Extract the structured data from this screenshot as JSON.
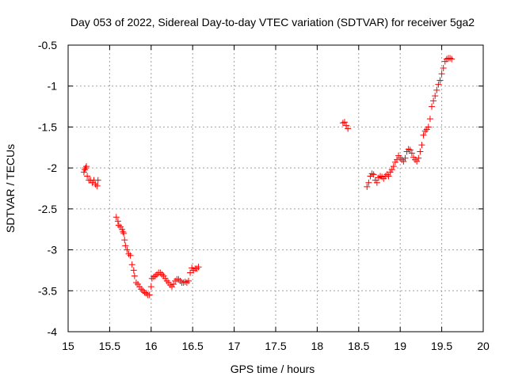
{
  "chart_data": {
    "type": "scatter",
    "title": "Day 053 of 2022, Sidereal Day-to-day VTEC variation (SDTVAR) for receiver 5ga2",
    "xlabel": "GPS time / hours",
    "ylabel": "SDTVAR / TECUs",
    "xlim": [
      15,
      20
    ],
    "ylim": [
      -4,
      -0.5
    ],
    "xticks": [
      15,
      15.5,
      16,
      16.5,
      17,
      17.5,
      18,
      18.5,
      19,
      19.5,
      20
    ],
    "xtick_labels": [
      "15",
      "15.5",
      "16",
      "16.5",
      "17",
      "17.5",
      "18",
      "18.5",
      "19",
      "19.5",
      "20"
    ],
    "yticks": [
      -4,
      -3.5,
      -3,
      -2.5,
      -2,
      -1.5,
      -1,
      -0.5
    ],
    "ytick_labels": [
      "-4",
      "-3.5",
      "-3",
      "-2.5",
      "-2",
      "-1.5",
      "-1",
      "-0.5"
    ],
    "grid": true,
    "marker": "plus",
    "color": "#ff0000",
    "series": [
      {
        "name": "SDTVAR",
        "points": [
          [
            15.19,
            -2.05
          ],
          [
            15.2,
            -2.02
          ],
          [
            15.21,
            -2.0
          ],
          [
            15.22,
            -1.98
          ],
          [
            15.23,
            -2.1
          ],
          [
            15.25,
            -2.15
          ],
          [
            15.27,
            -2.15
          ],
          [
            15.29,
            -2.18
          ],
          [
            15.31,
            -2.15
          ],
          [
            15.33,
            -2.2
          ],
          [
            15.35,
            -2.22
          ],
          [
            15.36,
            -2.15
          ],
          [
            15.58,
            -2.6
          ],
          [
            15.6,
            -2.65
          ],
          [
            15.61,
            -2.7
          ],
          [
            15.63,
            -2.72
          ],
          [
            15.65,
            -2.75
          ],
          [
            15.66,
            -2.78
          ],
          [
            15.67,
            -2.8
          ],
          [
            15.68,
            -2.88
          ],
          [
            15.69,
            -2.95
          ],
          [
            15.71,
            -3.0
          ],
          [
            15.73,
            -3.05
          ],
          [
            15.75,
            -3.07
          ],
          [
            15.77,
            -3.18
          ],
          [
            15.79,
            -3.25
          ],
          [
            15.8,
            -3.32
          ],
          [
            15.82,
            -3.4
          ],
          [
            15.84,
            -3.42
          ],
          [
            15.86,
            -3.45
          ],
          [
            15.88,
            -3.48
          ],
          [
            15.9,
            -3.5
          ],
          [
            15.92,
            -3.52
          ],
          [
            15.94,
            -3.53
          ],
          [
            15.96,
            -3.55
          ],
          [
            15.98,
            -3.55
          ],
          [
            16.0,
            -3.45
          ],
          [
            16.01,
            -3.35
          ],
          [
            16.03,
            -3.33
          ],
          [
            16.05,
            -3.32
          ],
          [
            16.07,
            -3.3
          ],
          [
            16.09,
            -3.28
          ],
          [
            16.11,
            -3.28
          ],
          [
            16.13,
            -3.3
          ],
          [
            16.15,
            -3.32
          ],
          [
            16.17,
            -3.35
          ],
          [
            16.19,
            -3.38
          ],
          [
            16.21,
            -3.4
          ],
          [
            16.23,
            -3.43
          ],
          [
            16.25,
            -3.45
          ],
          [
            16.27,
            -3.42
          ],
          [
            16.29,
            -3.38
          ],
          [
            16.31,
            -3.36
          ],
          [
            16.33,
            -3.36
          ],
          [
            16.35,
            -3.38
          ],
          [
            16.37,
            -3.4
          ],
          [
            16.39,
            -3.4
          ],
          [
            16.41,
            -3.39
          ],
          [
            16.43,
            -3.4
          ],
          [
            16.45,
            -3.38
          ],
          [
            16.47,
            -3.28
          ],
          [
            16.49,
            -3.22
          ],
          [
            16.51,
            -3.25
          ],
          [
            16.53,
            -3.23
          ],
          [
            16.55,
            -3.23
          ],
          [
            16.57,
            -3.21
          ],
          [
            18.31,
            -1.45
          ],
          [
            18.33,
            -1.44
          ],
          [
            18.35,
            -1.48
          ],
          [
            18.37,
            -1.52
          ],
          [
            18.6,
            -2.23
          ],
          [
            18.62,
            -2.18
          ],
          [
            18.64,
            -2.1
          ],
          [
            18.66,
            -2.07
          ],
          [
            18.68,
            -2.08
          ],
          [
            18.7,
            -2.15
          ],
          [
            18.72,
            -2.18
          ],
          [
            18.74,
            -2.12
          ],
          [
            18.76,
            -2.1
          ],
          [
            18.78,
            -2.11
          ],
          [
            18.8,
            -2.13
          ],
          [
            18.82,
            -2.1
          ],
          [
            18.84,
            -2.08
          ],
          [
            18.86,
            -2.1
          ],
          [
            18.88,
            -2.05
          ],
          [
            18.9,
            -2.02
          ],
          [
            18.92,
            -1.98
          ],
          [
            18.94,
            -1.93
          ],
          [
            18.96,
            -1.9
          ],
          [
            18.98,
            -1.85
          ],
          [
            19.0,
            -1.88
          ],
          [
            19.02,
            -1.9
          ],
          [
            19.04,
            -1.92
          ],
          [
            19.06,
            -1.88
          ],
          [
            19.08,
            -1.8
          ],
          [
            19.1,
            -1.77
          ],
          [
            19.12,
            -1.78
          ],
          [
            19.14,
            -1.82
          ],
          [
            19.16,
            -1.87
          ],
          [
            19.18,
            -1.9
          ],
          [
            19.2,
            -1.92
          ],
          [
            19.22,
            -1.88
          ],
          [
            19.24,
            -1.8
          ],
          [
            19.26,
            -1.72
          ],
          [
            19.28,
            -1.6
          ],
          [
            19.3,
            -1.55
          ],
          [
            19.32,
            -1.53
          ],
          [
            19.34,
            -1.5
          ],
          [
            19.36,
            -1.4
          ],
          [
            19.38,
            -1.25
          ],
          [
            19.4,
            -1.18
          ],
          [
            19.42,
            -1.12
          ],
          [
            19.44,
            -1.05
          ],
          [
            19.46,
            -0.98
          ],
          [
            19.48,
            -0.93
          ],
          [
            19.5,
            -0.85
          ],
          [
            19.52,
            -0.78
          ],
          [
            19.54,
            -0.7
          ],
          [
            19.56,
            -0.67
          ],
          [
            19.58,
            -0.66
          ],
          [
            19.6,
            -0.66
          ],
          [
            19.62,
            -0.67
          ]
        ]
      }
    ]
  }
}
